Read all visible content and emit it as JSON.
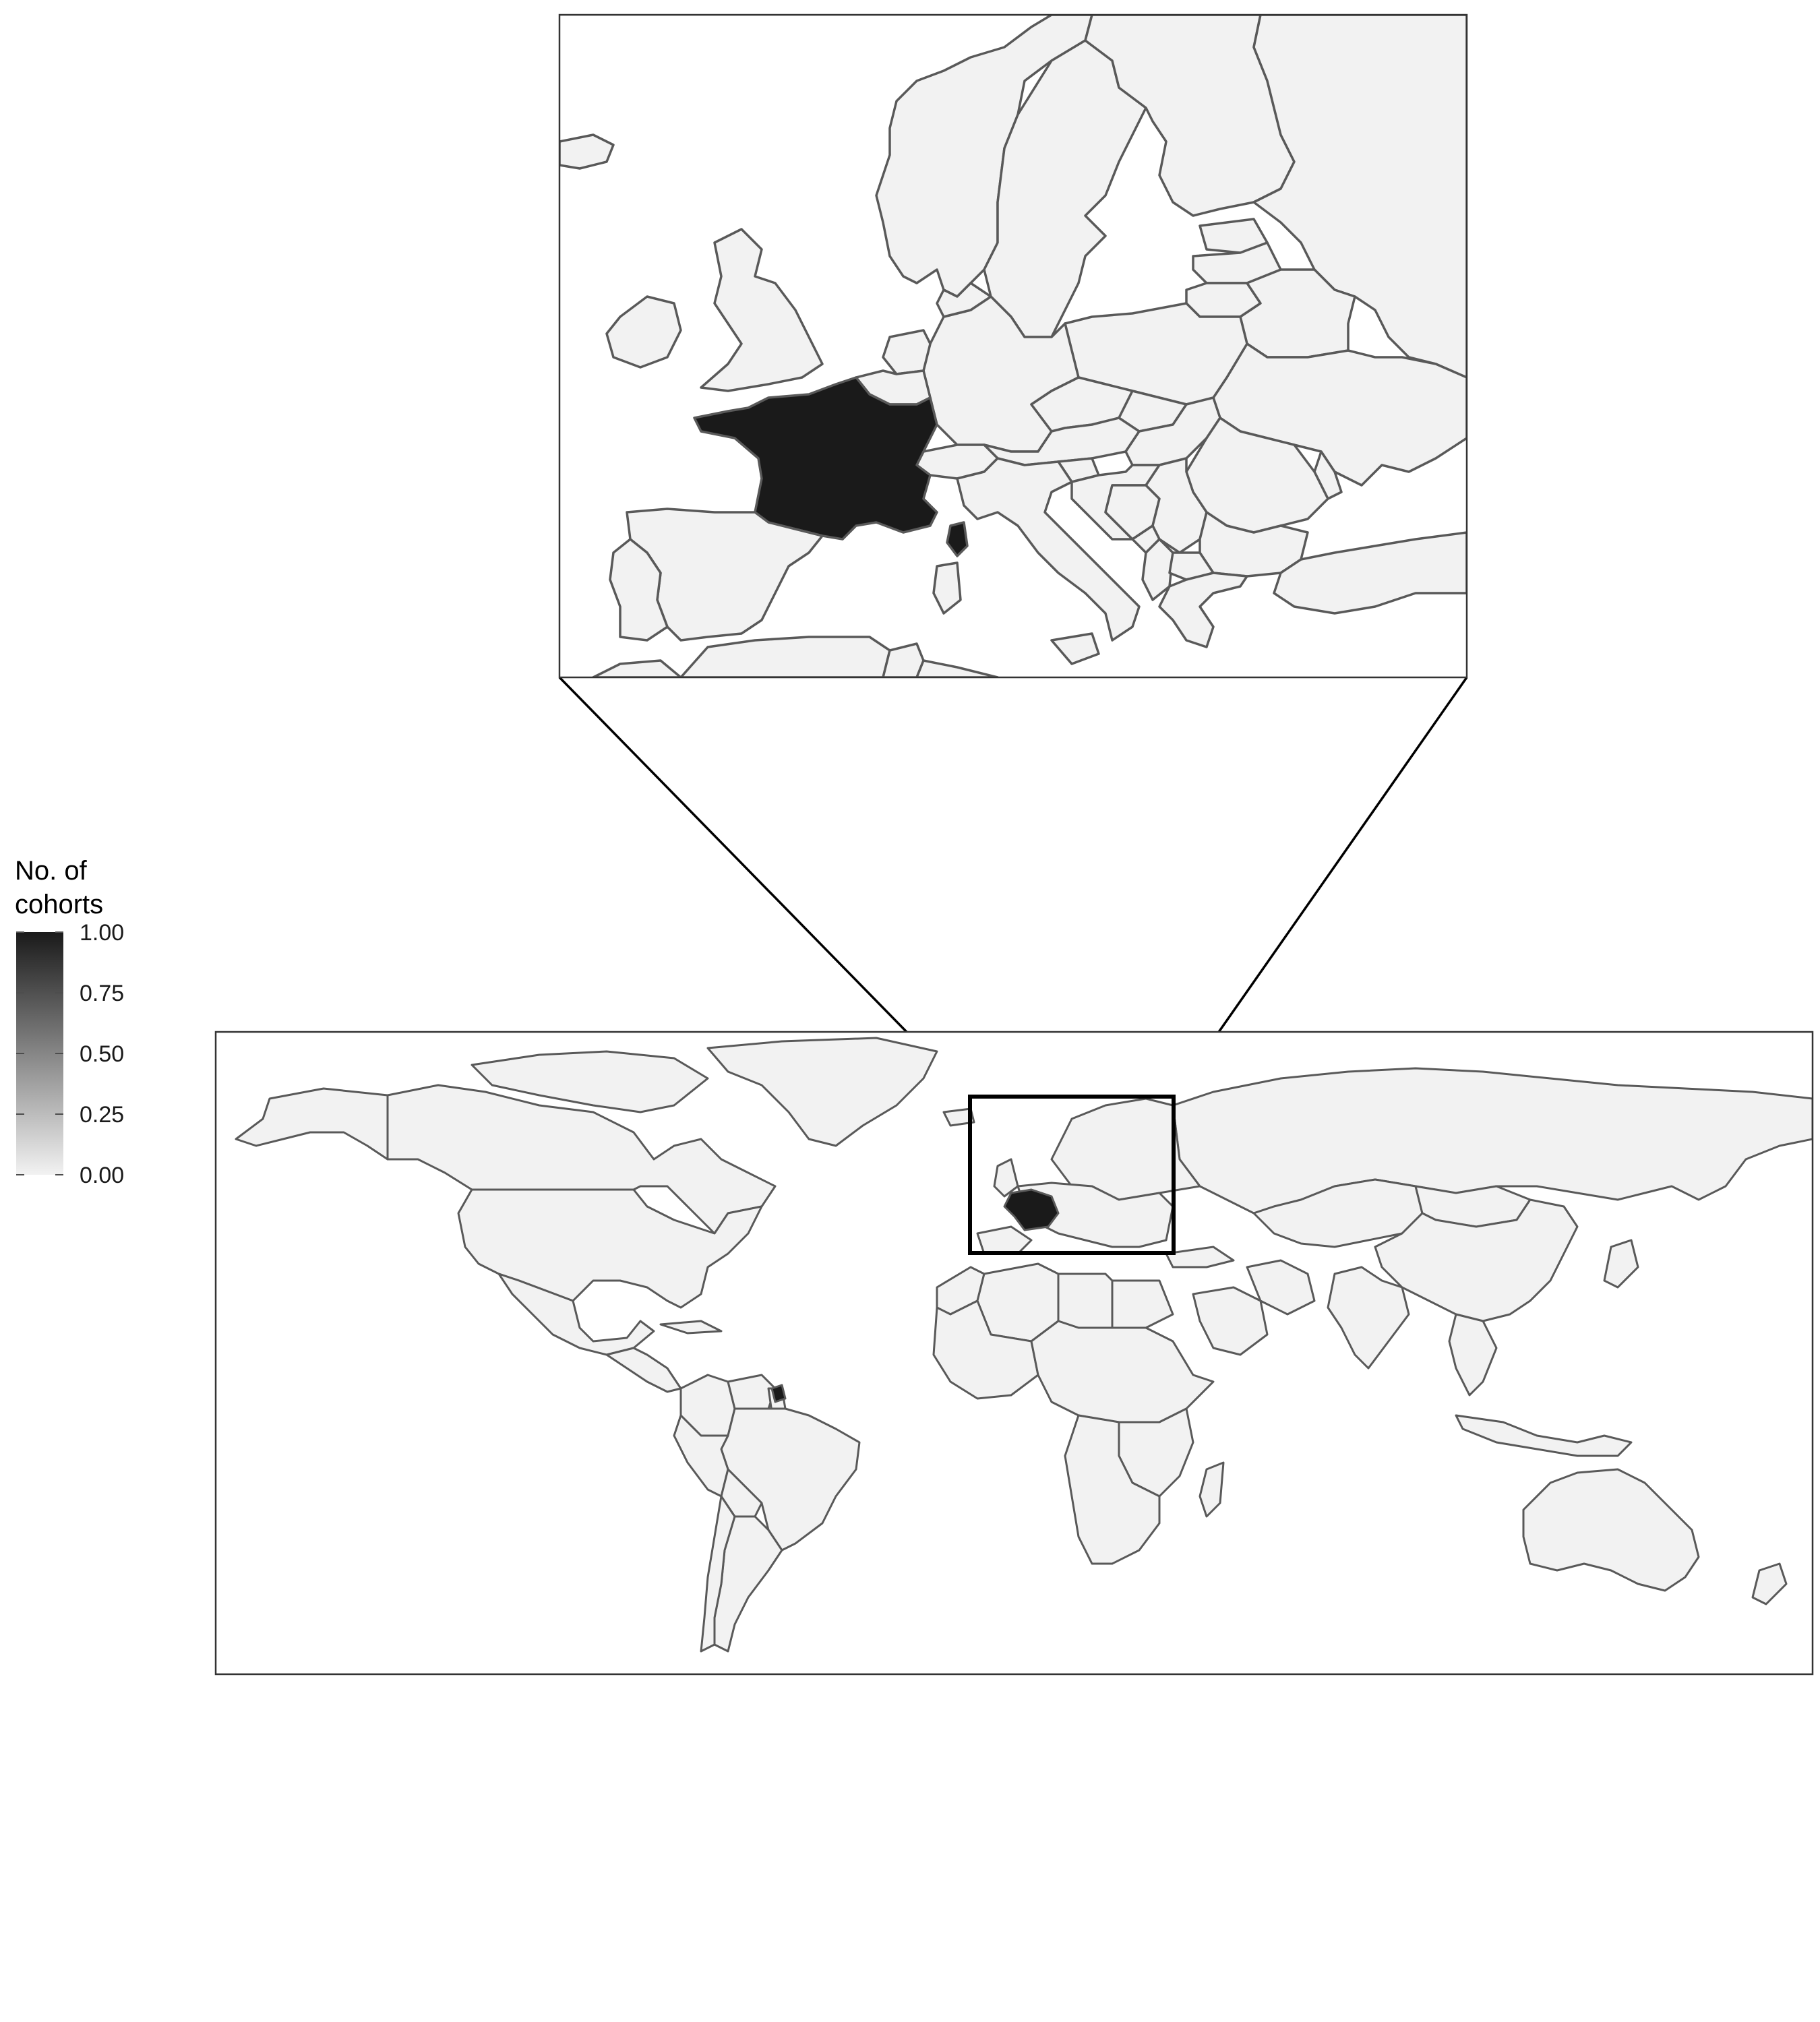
{
  "legend": {
    "title_line1": "No. of",
    "title_line2": "cohorts",
    "min": 0,
    "max": 1,
    "ticks": [
      "0.00",
      "0.25",
      "0.50",
      "0.75",
      "1.00"
    ],
    "color_low": "#f2f2f2",
    "color_high": "#1a1a1a"
  },
  "map": {
    "country_fill": "#f2f2f2",
    "border_color": "#595959",
    "highlight_fill": "#1a1a1a",
    "highlighted_country_cohorts": 1,
    "inset_region": "Europe",
    "world_region": "World"
  }
}
